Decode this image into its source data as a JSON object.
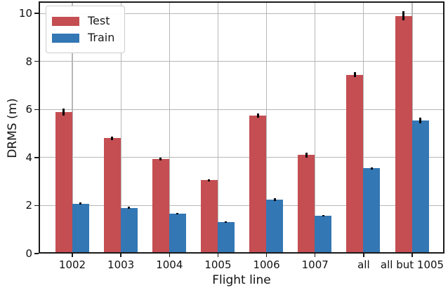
{
  "chart_data": {
    "type": "bar",
    "title": "",
    "xlabel": "Flight line",
    "ylabel": "DRMS (m)",
    "categories": [
      "1002",
      "1003",
      "1004",
      "1005",
      "1006",
      "1007",
      "all",
      "all but 1005"
    ],
    "series": [
      {
        "name": "Test",
        "color": "#c44e52",
        "values": [
          5.9,
          4.8,
          3.95,
          3.05,
          5.75,
          4.1,
          7.45,
          9.9
        ],
        "errors": [
          0.15,
          0.08,
          0.06,
          0.05,
          0.09,
          0.1,
          0.1,
          0.2
        ]
      },
      {
        "name": "Train",
        "color": "#3377b4",
        "values": [
          2.08,
          1.9,
          1.66,
          1.3,
          2.25,
          1.57,
          3.55,
          5.55
        ],
        "errors": [
          0.05,
          0.04,
          0.03,
          0.03,
          0.05,
          0.03,
          0.05,
          0.12
        ]
      }
    ],
    "ylim": [
      0,
      10.5
    ],
    "yticks": [
      0,
      2,
      4,
      6,
      8,
      10
    ],
    "grid": true,
    "legend_position": "upper left",
    "grid_color": "#b7b7b7",
    "spine_color": "#1a1a1a",
    "error_bar_color": "#000000"
  }
}
